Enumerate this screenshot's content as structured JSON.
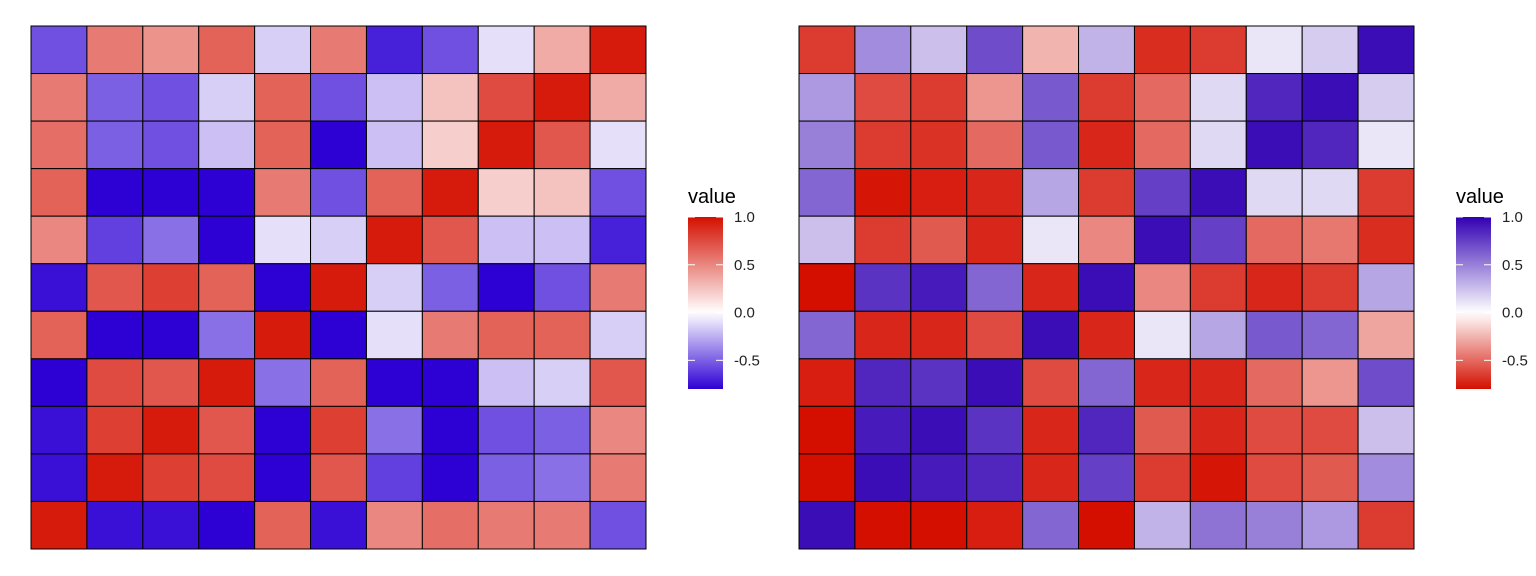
{
  "chart_data": [
    {
      "type": "heatmap",
      "rows": 11,
      "cols": 11,
      "legend": {
        "title": "value",
        "ticks": [
          1.0,
          0.5,
          0.0,
          -0.5
        ],
        "tick_labels": [
          "1.0",
          "0.5",
          "0.0",
          "-0.5"
        ],
        "range": [
          -0.8,
          1.0
        ]
      },
      "colors": {
        "high": "#d40f00",
        "mid": "#ffffff",
        "low": "#2d00d4"
      },
      "values": [
        [
          -0.55,
          0.55,
          0.45,
          0.65,
          -0.15,
          0.55,
          -0.7,
          -0.55,
          -0.1,
          0.35,
          0.95
        ],
        [
          0.55,
          -0.5,
          -0.55,
          -0.15,
          0.65,
          -0.55,
          -0.2,
          0.25,
          0.75,
          0.95,
          0.35
        ],
        [
          0.6,
          -0.5,
          -0.55,
          -0.2,
          0.65,
          -0.8,
          -0.2,
          0.2,
          0.95,
          0.7,
          -0.1
        ],
        [
          0.65,
          -0.8,
          -0.8,
          -0.8,
          0.55,
          -0.55,
          0.65,
          0.95,
          0.2,
          0.25,
          -0.55
        ],
        [
          0.5,
          -0.6,
          -0.45,
          -0.8,
          -0.1,
          -0.15,
          0.95,
          0.7,
          -0.2,
          -0.2,
          -0.7
        ],
        [
          -0.75,
          0.7,
          0.8,
          0.65,
          -0.8,
          0.95,
          -0.15,
          -0.5,
          -0.8,
          -0.55,
          0.55
        ],
        [
          0.65,
          -0.8,
          -0.8,
          -0.45,
          0.95,
          -0.8,
          -0.1,
          0.55,
          0.65,
          0.65,
          -0.15
        ],
        [
          -0.8,
          0.75,
          0.7,
          0.95,
          -0.45,
          0.65,
          -0.8,
          -0.8,
          -0.2,
          -0.15,
          0.7
        ],
        [
          -0.75,
          0.8,
          0.95,
          0.7,
          -0.8,
          0.8,
          -0.45,
          -0.8,
          -0.55,
          -0.5,
          0.5
        ],
        [
          -0.75,
          0.95,
          0.8,
          0.75,
          -0.8,
          0.7,
          -0.6,
          -0.8,
          -0.5,
          -0.45,
          0.55
        ],
        [
          0.95,
          -0.75,
          -0.75,
          -0.8,
          0.65,
          -0.75,
          0.5,
          0.6,
          0.55,
          0.55,
          -0.55
        ]
      ]
    },
    {
      "type": "heatmap",
      "rows": 11,
      "cols": 11,
      "legend": {
        "title": "value",
        "ticks": [
          1.0,
          0.5,
          0.0,
          -0.5
        ],
        "tick_labels": [
          "1.0",
          "0.5",
          "0.0",
          "-0.5"
        ],
        "range": [
          -0.8,
          1.0
        ]
      },
      "colors": {
        "high": "#3100b3",
        "mid": "#ffffff",
        "low": "#d40f00"
      },
      "values": [
        [
          -0.65,
          0.45,
          0.25,
          0.7,
          -0.25,
          0.3,
          -0.7,
          -0.65,
          0.1,
          0.2,
          0.95
        ],
        [
          0.4,
          -0.6,
          -0.65,
          -0.35,
          0.65,
          -0.65,
          -0.5,
          0.15,
          0.85,
          0.95,
          0.2
        ],
        [
          0.5,
          -0.65,
          -0.68,
          -0.5,
          0.65,
          -0.72,
          -0.5,
          0.15,
          0.95,
          0.85,
          0.1
        ],
        [
          0.6,
          -0.78,
          -0.75,
          -0.72,
          0.35,
          -0.65,
          0.75,
          0.95,
          0.15,
          0.15,
          -0.65
        ],
        [
          0.25,
          -0.65,
          -0.55,
          -0.72,
          0.1,
          -0.4,
          0.95,
          0.75,
          -0.5,
          -0.45,
          -0.7
        ],
        [
          -0.8,
          0.8,
          0.9,
          0.6,
          -0.72,
          0.95,
          -0.4,
          -0.65,
          -0.72,
          -0.65,
          0.35
        ],
        [
          0.6,
          -0.72,
          -0.72,
          -0.6,
          0.95,
          -0.72,
          0.1,
          0.35,
          0.65,
          0.6,
          -0.3
        ],
        [
          -0.75,
          0.85,
          0.8,
          0.95,
          -0.6,
          0.6,
          -0.72,
          -0.72,
          -0.5,
          -0.35,
          0.7
        ],
        [
          -0.8,
          0.9,
          0.95,
          0.8,
          -0.72,
          0.85,
          -0.55,
          -0.72,
          -0.6,
          -0.6,
          0.25
        ],
        [
          -0.8,
          0.95,
          0.9,
          0.85,
          -0.72,
          0.75,
          -0.65,
          -0.78,
          -0.6,
          -0.55,
          0.45
        ],
        [
          0.95,
          -0.8,
          -0.8,
          -0.75,
          0.6,
          -0.8,
          0.3,
          0.55,
          0.5,
          0.4,
          -0.65
        ]
      ]
    }
  ]
}
